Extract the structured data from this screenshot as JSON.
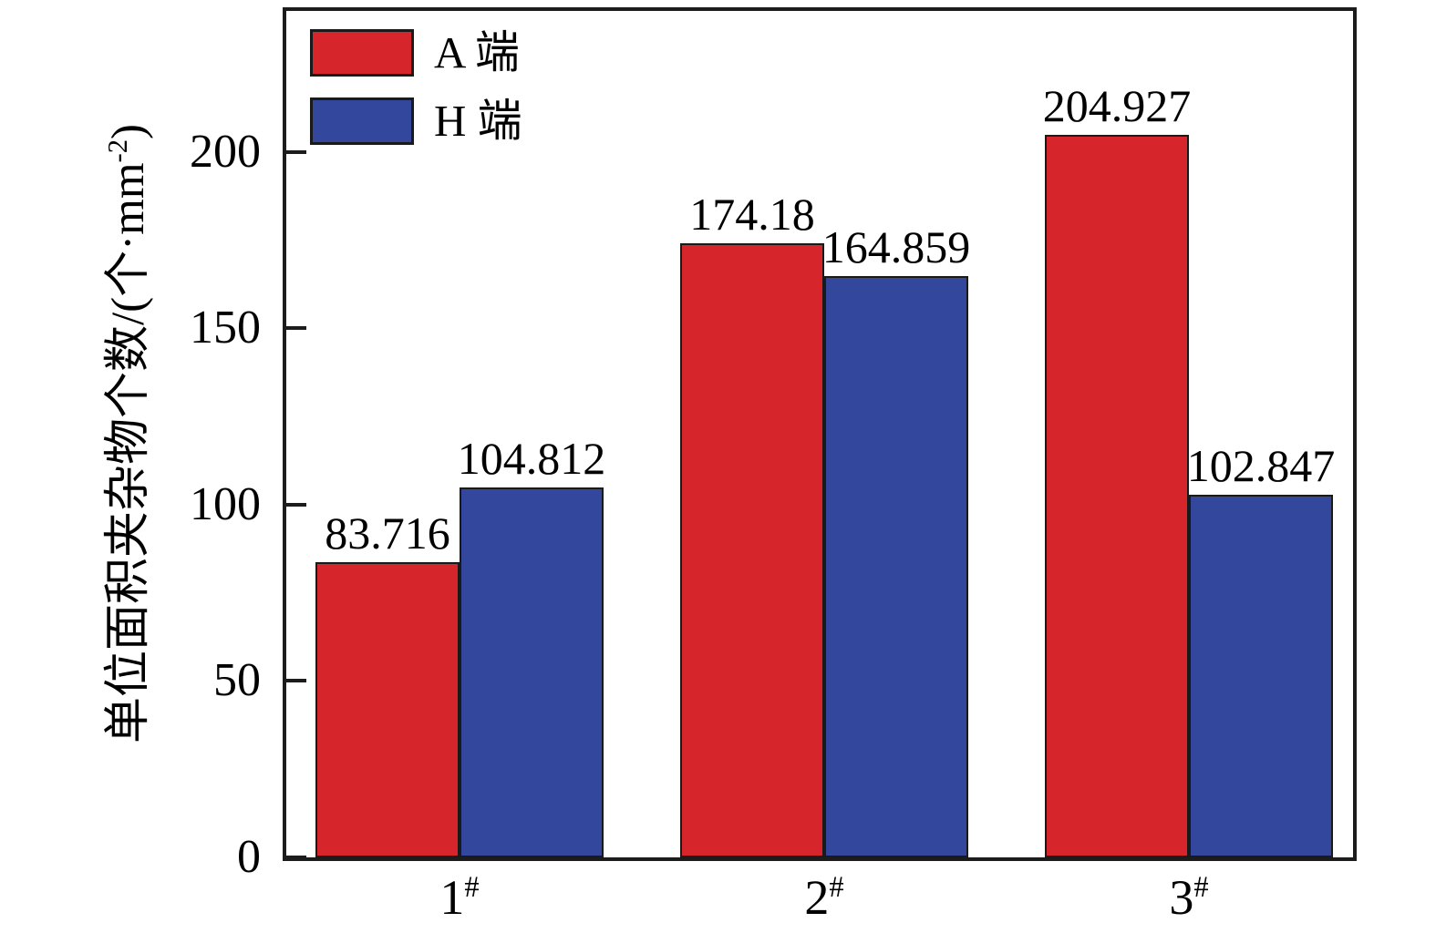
{
  "chart_data": {
    "type": "bar",
    "title": "",
    "categories": [
      "1",
      "2",
      "3"
    ],
    "category_sup": "#",
    "series": [
      {
        "name": "A 端",
        "color": "#d7262b",
        "values": [
          83.716,
          174.18,
          204.927
        ],
        "labels": [
          "83.716",
          "174.18",
          "204.927"
        ]
      },
      {
        "name": "H 端",
        "color": "#33489c",
        "values": [
          104.812,
          164.859,
          102.847
        ],
        "labels": [
          "104.812",
          "164.859",
          "102.847"
        ]
      }
    ],
    "ylabel_prefix": "单位面积夹杂物个数/(个·mm",
    "ylabel_sup": "-2",
    "ylabel_suffix": ")",
    "xlabel": "",
    "yticks": [
      0,
      50,
      100,
      150,
      200
    ],
    "ylim": [
      0,
      240
    ],
    "legend_position": "top-left",
    "grid": false,
    "axis_color": "#1c1c1c",
    "background": "#ffffff"
  }
}
